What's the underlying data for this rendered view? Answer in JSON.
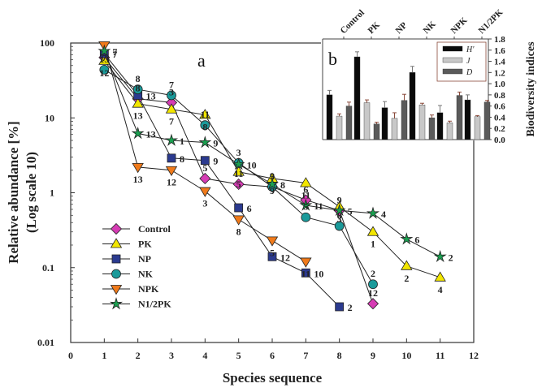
{
  "chart_data": [
    {
      "panel": "a",
      "type": "line",
      "xlabel": "Species sequence",
      "ylabel": "Relative abundance [%]",
      "ylabel2": "(Log scale 10)",
      "xlim": [
        0,
        12
      ],
      "ylim": [
        0.01,
        100
      ],
      "yscale": "log",
      "xticks": [
        "0",
        "1",
        "2",
        "3",
        "4",
        "5",
        "6",
        "7",
        "8",
        "9",
        "10",
        "11",
        "12"
      ],
      "yticks": [
        {
          "value": 100,
          "label": "100"
        },
        {
          "value": 10,
          "label": "10"
        },
        {
          "value": 1,
          "label": "1"
        },
        {
          "value": 0.1,
          "label": "0.1"
        },
        {
          "value": 0.01,
          "label": "0.01"
        }
      ],
      "legend_position": "bottom-left",
      "series": [
        {
          "name": "Control",
          "marker": "diamond",
          "color": "#d63cb4",
          "x": [
            1,
            2,
            3,
            4,
            5,
            6,
            7,
            8,
            9
          ],
          "y": [
            64,
            18,
            16,
            1.55,
            1.3,
            1.2,
            0.8,
            0.58,
            0.033
          ],
          "labels": [
            "",
            "8",
            "3",
            "5",
            "11",
            "2",
            "6",
            "9",
            "12"
          ]
        },
        {
          "name": "PK",
          "marker": "triangle-up",
          "color": "#f2e600",
          "x": [
            1,
            2,
            3,
            4,
            5,
            6,
            7,
            8,
            9,
            10,
            11
          ],
          "y": [
            58,
            15.5,
            13,
            11,
            1.9,
            1.55,
            1.35,
            0.65,
            0.3,
            0.105,
            0.074
          ],
          "labels": [
            "12",
            "13",
            "7",
            "8",
            "5",
            "9",
            "11",
            "3",
            "1",
            "2",
            "4"
          ]
        },
        {
          "name": "NP",
          "marker": "square",
          "color": "#2b3a8f",
          "x": [
            1,
            2,
            3,
            4,
            5,
            6,
            7,
            8
          ],
          "y": [
            72,
            20,
            2.9,
            2.7,
            0.63,
            0.14,
            0.085,
            0.03
          ],
          "labels": [
            "7",
            "13",
            "8",
            "9",
            "6",
            "12",
            "10",
            "2"
          ]
        },
        {
          "name": "NK",
          "marker": "circle",
          "color": "#1a9a9a",
          "x": [
            1,
            2,
            3,
            4,
            5,
            6,
            7,
            8,
            9
          ],
          "y": [
            44,
            24,
            20,
            8,
            2.5,
            1.2,
            0.47,
            0.36,
            0.06
          ],
          "labels": [
            "13",
            "8",
            "7",
            "11",
            "3",
            "9",
            "5",
            "6",
            "2"
          ]
        },
        {
          "name": "NPK",
          "marker": "triangle-down",
          "color": "#f07a1a",
          "x": [
            1,
            2,
            3,
            4,
            5,
            6,
            7
          ],
          "y": [
            93,
            2.2,
            2.0,
            1.05,
            0.44,
            0.23,
            0.12
          ],
          "labels": [
            "7",
            "13",
            "12",
            "3",
            "8",
            "5",
            "11"
          ]
        },
        {
          "name": "N1/2PK",
          "marker": "star",
          "color": "#1aa050",
          "x": [
            1,
            2,
            3,
            4,
            5,
            6,
            7,
            8,
            9,
            10,
            11
          ],
          "y": [
            78,
            6.2,
            5.0,
            4.7,
            2.4,
            1.3,
            0.68,
            0.58,
            0.53,
            0.24,
            0.14
          ],
          "labels": [
            "7",
            "13",
            "1",
            "9",
            "10",
            "8",
            "11",
            "5",
            "4",
            "6",
            "2"
          ]
        }
      ]
    },
    {
      "panel": "b",
      "type": "bar",
      "ylabel": "Biodiversity indices",
      "ylim": [
        0,
        1.8
      ],
      "yticks": [
        "0.0",
        "0.2",
        "0.4",
        "0.6",
        "0.8",
        "1.0",
        "1.2",
        "1.4",
        "1.6",
        "1.8"
      ],
      "categories": [
        "Control",
        "PK",
        "NP",
        "NK",
        "NPK",
        "N1/2PK"
      ],
      "legend_position": "top-right",
      "series": [
        {
          "name": "H'",
          "color": "#0a0a0a",
          "values": [
            0.8,
            1.48,
            0.57,
            1.2,
            0.48,
            0.71
          ],
          "errors": [
            0.08,
            0.09,
            0.11,
            0.11,
            0.13,
            0.09
          ]
        },
        {
          "name": "J",
          "color": "#c8c8c8",
          "values": [
            0.42,
            0.66,
            0.38,
            0.62,
            0.3,
            0.41
          ],
          "errors": [
            0.04,
            0.05,
            0.1,
            0.03,
            0.03,
            0.02
          ]
        },
        {
          "name": "D",
          "color": "#5a5a5a",
          "values": [
            0.6,
            0.28,
            0.7,
            0.39,
            0.79,
            0.67
          ],
          "errors": [
            0.07,
            0.03,
            0.11,
            0.05,
            0.06,
            0.03
          ]
        }
      ]
    }
  ]
}
